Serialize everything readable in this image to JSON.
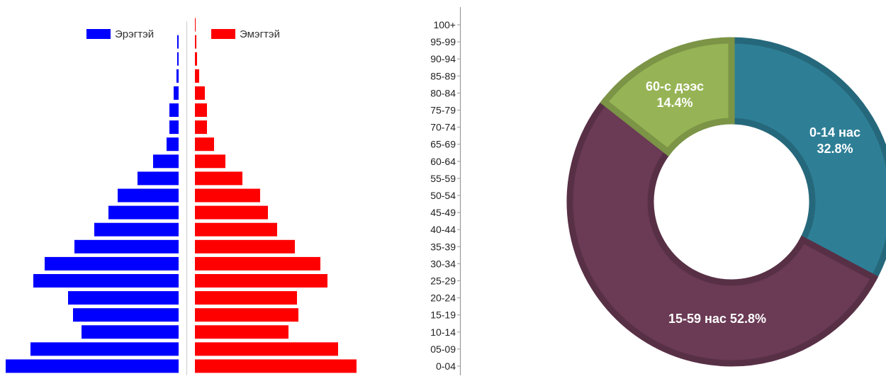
{
  "chart_data": [
    {
      "type": "bar",
      "orientation": "horizontal",
      "subtype": "population-pyramid",
      "categories": [
        "0-04",
        "05-09",
        "10-14",
        "15-19",
        "20-24",
        "25-29",
        "30-34",
        "35-39",
        "40-44",
        "45-49",
        "50-54",
        "55-59",
        "60-64",
        "65-69",
        "70-74",
        "75-79",
        "80-84",
        "85-89",
        "90-94",
        "95-99",
        "100+"
      ],
      "series": [
        {
          "name": "Эрэгтэй",
          "color": "#0000ff",
          "values": [
            244,
            209,
            137,
            149,
            156,
            205,
            189,
            147,
            119,
            99,
            86,
            58,
            36,
            17,
            13,
            13,
            7,
            3,
            2,
            2,
            0
          ]
        },
        {
          "name": "Эмэгтэй",
          "color": "#ff0000",
          "values": [
            228,
            202,
            132,
            146,
            144,
            187,
            177,
            141,
            116,
            103,
            92,
            67,
            43,
            27,
            17,
            17,
            14,
            6,
            3,
            2,
            1
          ]
        }
      ],
      "legend": "top",
      "grid": false
    },
    {
      "type": "pie",
      "subtype": "donut",
      "slices": [
        {
          "label": "0-14 нас",
          "value_text": "32.8%",
          "value": 32.8,
          "color": "#2e7f96"
        },
        {
          "label": "15-59 нас",
          "value_text": "52.8%",
          "value": 52.8,
          "color": "#6b3a55"
        },
        {
          "label": "60-с дээс",
          "value_text": "14.4%",
          "value": 14.4,
          "color": "#96b455"
        }
      ]
    }
  ]
}
